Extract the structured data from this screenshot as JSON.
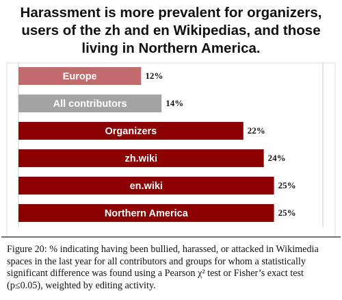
{
  "chart_data": {
    "type": "hbar",
    "title": "Harassment is more prevalent for organizers, users of the zh and en Wikipedias, and those living in Northern America.",
    "caption": "Figure 20: % indicating having been bullied, harassed, or attacked in Wikimedia spaces in the last year for all contributors and groups for whom a statistically significant difference was found using a Pearson χ² test  or Fisher’s exact test (p≤0.05), weighted by editing activity.",
    "categories": [
      "Europe",
      "All contributors",
      "Organizers",
      "zh.wiki",
      "en.wiki",
      "Northern America"
    ],
    "values": [
      12,
      14,
      22,
      24,
      25,
      25
    ],
    "value_labels": [
      "12%",
      "14%",
      "22%",
      "24%",
      "25%",
      "25%"
    ],
    "colors": [
      "#c26a6c",
      "#a3a3a3",
      "#8b0000",
      "#8b0000",
      "#8b0000",
      "#8b0000"
    ],
    "xlim": [
      0,
      26.5
    ]
  }
}
